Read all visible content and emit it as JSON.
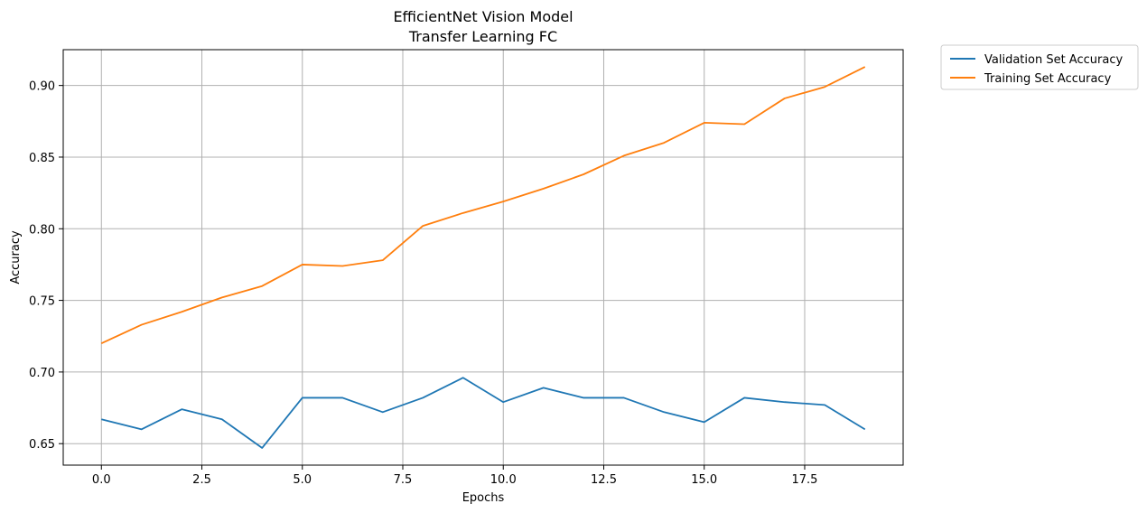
{
  "chart_data": {
    "type": "line",
    "title_lines": [
      "EfficientNet Vision Model",
      "Transfer Learning FC"
    ],
    "xlabel": "Epochs",
    "ylabel": "Accuracy",
    "xlim": [
      -0.95,
      19.95
    ],
    "ylim": [
      0.635,
      0.925
    ],
    "xticks": [
      0.0,
      2.5,
      5.0,
      7.5,
      10.0,
      12.5,
      15.0,
      17.5
    ],
    "xtick_labels": [
      "0.0",
      "2.5",
      "5.0",
      "7.5",
      "10.0",
      "12.5",
      "15.0",
      "17.5"
    ],
    "yticks": [
      0.65,
      0.7,
      0.75,
      0.8,
      0.85,
      0.9
    ],
    "ytick_labels": [
      "0.65",
      "0.70",
      "0.75",
      "0.80",
      "0.85",
      "0.90"
    ],
    "grid": true,
    "legend_position": "outside-top-right",
    "x": [
      0,
      1,
      2,
      3,
      4,
      5,
      6,
      7,
      8,
      9,
      10,
      11,
      12,
      13,
      14,
      15,
      16,
      17,
      18,
      19
    ],
    "series": [
      {
        "name": "Validation Set Accuracy",
        "color": "#1f77b4",
        "values": [
          0.667,
          0.66,
          0.674,
          0.667,
          0.647,
          0.682,
          0.682,
          0.672,
          0.682,
          0.696,
          0.679,
          0.689,
          0.682,
          0.682,
          0.672,
          0.665,
          0.682,
          0.679,
          0.677,
          0.66
        ]
      },
      {
        "name": "Training Set Accuracy",
        "color": "#ff7f0e",
        "values": [
          0.72,
          0.733,
          0.742,
          0.752,
          0.76,
          0.775,
          0.774,
          0.778,
          0.802,
          0.811,
          0.819,
          0.828,
          0.838,
          0.851,
          0.86,
          0.874,
          0.873,
          0.891,
          0.899,
          0.913
        ]
      }
    ]
  }
}
